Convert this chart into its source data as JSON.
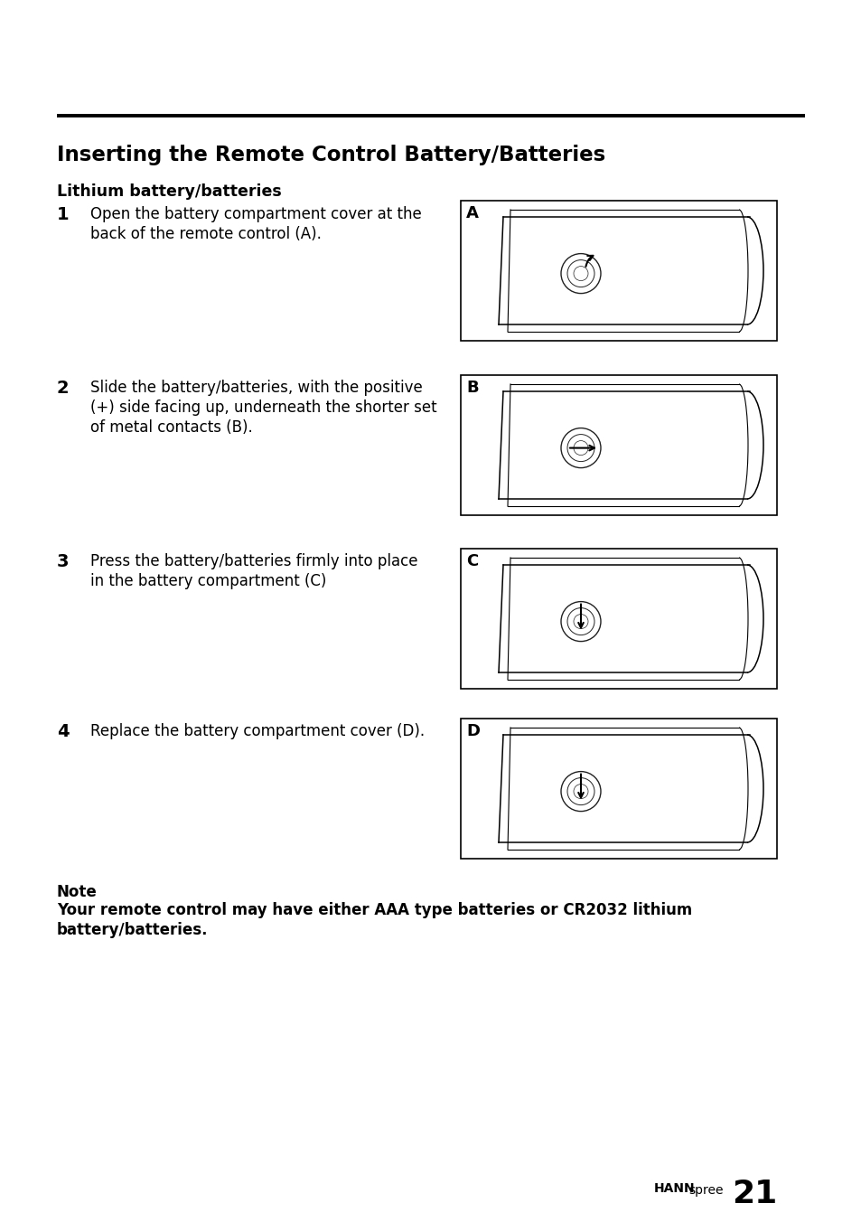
{
  "title": "Inserting the Remote Control Battery/Batteries",
  "subtitle": "Lithium battery/batteries",
  "steps": [
    {
      "number": "1",
      "text_line1": "Open the battery compartment cover at the",
      "text_line2": "back of the remote control (A).",
      "label": "A"
    },
    {
      "number": "2",
      "text_line1": "Slide the battery/batteries, with the positive",
      "text_line2": "(+) side facing up, underneath the shorter set",
      "text_line3": "of metal contacts (B).",
      "label": "B"
    },
    {
      "number": "3",
      "text_line1": "Press the battery/batteries firmly into place",
      "text_line2": "in the battery compartment (C)",
      "label": "C"
    },
    {
      "number": "4",
      "text_line1": "Replace the battery compartment cover (D).",
      "label": "D"
    }
  ],
  "note_label": "Note",
  "note_line1": "Your remote control may have either AAA type batteries or CR2032 lithium",
  "note_line2": "battery/batteries.",
  "brand_hann": "HANN",
  "brand_spree": "spree",
  "page_number": "21",
  "bg_color": "#ffffff",
  "text_color": "#000000",
  "line_color": "#000000"
}
